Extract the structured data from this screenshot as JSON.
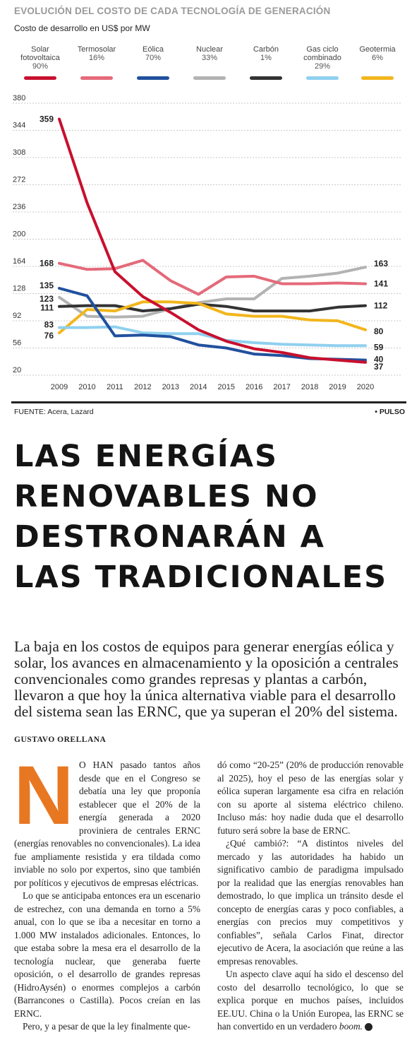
{
  "header": {
    "kicker": "EVOLUCIÓN DEL COSTO DE CADA TECNOLOGÍA DE GENERACIÓN",
    "subtitle": "Costo de desarrollo en US$ por MW"
  },
  "chart_data": {
    "type": "line",
    "title": "EVOLUCIÓN DEL COSTO DE CADA TECNOLOGÍA DE GENERACIÓN",
    "subtitle": "Costo de desarrollo en US$ por MW",
    "x": [
      2009,
      2010,
      2011,
      2012,
      2013,
      2014,
      2015,
      2016,
      2017,
      2018,
      2019,
      2020
    ],
    "ylim": [
      20,
      380
    ],
    "yticks": [
      20,
      56,
      92,
      128,
      164,
      200,
      236,
      272,
      308,
      344,
      380
    ],
    "grid": "horizontal",
    "legend_position": "top",
    "series": [
      {
        "name": "Solar fotovoltaica",
        "change": "90%",
        "color": "#c8102e",
        "values": [
          359,
          248,
          157,
          124,
          103,
          80,
          65,
          55,
          50,
          43,
          40,
          37
        ],
        "start_label": "359",
        "end_label": "37"
      },
      {
        "name": "Termosolar",
        "change": "16%",
        "color": "#e46a7a",
        "values": [
          168,
          160,
          161,
          172,
          145,
          127,
          150,
          151,
          141,
          141,
          142,
          141
        ],
        "start_label": "168",
        "end_label": "141"
      },
      {
        "name": "Eólica",
        "change": "70%",
        "color": "#21509e",
        "values": [
          135,
          125,
          72,
          73,
          71,
          60,
          56,
          48,
          46,
          42,
          41,
          40
        ],
        "start_label": "135",
        "end_label": "40"
      },
      {
        "name": "Nuclear",
        "change": "33%",
        "color": "#b3b3b3",
        "values": [
          123,
          98,
          97,
          98,
          108,
          116,
          121,
          121,
          148,
          151,
          155,
          163
        ],
        "start_label": "123",
        "end_label": "163"
      },
      {
        "name": "Carbón",
        "change": "1%",
        "color": "#333333",
        "values": [
          111,
          112,
          112,
          105,
          108,
          114,
          111,
          105,
          105,
          105,
          110,
          112
        ],
        "start_label": "111",
        "end_label": "112"
      },
      {
        "name": "Gas ciclo combinado",
        "change": "29%",
        "color": "#8fd0ef",
        "values": [
          83,
          83,
          84,
          76,
          75,
          75,
          66,
          63,
          61,
          60,
          59,
          59
        ],
        "start_label": "83",
        "end_label": "59"
      },
      {
        "name": "Geotermia",
        "change": "6%",
        "color": "#f2b61c",
        "values": [
          76,
          107,
          105,
          117,
          117,
          115,
          101,
          98,
          98,
          93,
          92,
          80
        ],
        "start_label": "76",
        "end_label": "80"
      }
    ]
  },
  "legend": [
    {
      "name_lines": [
        "Solar",
        "fotovoltaica"
      ],
      "pct": "90%"
    },
    {
      "name_lines": [
        "Termosolar"
      ],
      "pct": "16%"
    },
    {
      "name_lines": [
        "Eólica"
      ],
      "pct": "70%"
    },
    {
      "name_lines": [
        "Nuclear"
      ],
      "pct": "33%"
    },
    {
      "name_lines": [
        "Carbón"
      ],
      "pct": "1%"
    },
    {
      "name_lines": [
        "Gas ciclo",
        "combinado"
      ],
      "pct": "29%"
    },
    {
      "name_lines": [
        "Geotermia"
      ],
      "pct": "6%"
    }
  ],
  "footer": {
    "source": "FUENTE: Acera, Lazard",
    "brand": "• PULSO"
  },
  "article": {
    "headline_lines": [
      "LAS ENERGÍAS",
      "RENOVABLES NO",
      "DESTRONARÁN A",
      "LAS TRADICIONALES"
    ],
    "lede": "La baja en los costos de equipos para generar energías eólica y solar, los avances en almacenamiento y la oposición a centrales convencionales como grandes represas y plantas a carbón, llevaron a que hoy la única alternativa viable para el desarrollo del sistema sean las ERNC, que ya superan el 20% del sistema.",
    "byline": "GUSTAVO ORELLANA",
    "dropcap": "N",
    "left_paragraphs": [
      "O HAN pasado tantos años desde que en el Congreso se debatía una ley que proponía establecer que el 20% de la energía generada a 2020 proviniera de centrales ERNC (energías renovables no convencionales). La idea fue ampliamente resistida y era tildada como inviable no solo por expertos, sino que también por políticos y ejecutivos de empresas eléctricas.",
      "Lo que se anticipaba entonces era un escenario de estrechez, con una demanda en torno a 5% anual, con lo que se iba a necesitar en torno a 1.000 MW instalados adicionales. Entonces, lo que estaba sobre la mesa era el desarrollo de la tecnología nuclear, que generaba fuerte oposición, o el desarrollo de grandes represas (HidroAysén) o enormes complejos a carbón (Barrancones o Castilla). Pocos creían en las ERNC.",
      "Pero, y a pesar de que la ley finalmente que-"
    ],
    "right_paragraphs": [
      "dó como “20-25” (20% de producción renovable al 2025), hoy el peso de las energías solar y eólica superan largamente esa cifra en relación con su aporte al sistema eléctrico chileno. Incluso más: hoy nadie duda que el desarrollo futuro será sobre la base de ERNC.",
      "¿Qué cambió?: “A distintos niveles del mercado y las autoridades ha habido un significativo cambio de paradigma impulsado por la realidad que las energías renovables han demostrado, lo que implica un tránsito desde el concepto de energías caras y poco confiables, a energías con precios muy competitivos y confiables”, señala Carlos Finat, director ejecutivo de Acera, la asociación que reúne a las empresas renovables."
    ],
    "last_paragraph_text": "Un aspecto clave aquí ha sido el descenso del costo del desarrollo tecnológico, lo que se explica porque en muchos países, incluidos EE.UU. China o la Unión Europea, las ERNC se han convertido en un verdadero ",
    "last_paragraph_italic": "boom.",
    "end_mark": "P"
  }
}
